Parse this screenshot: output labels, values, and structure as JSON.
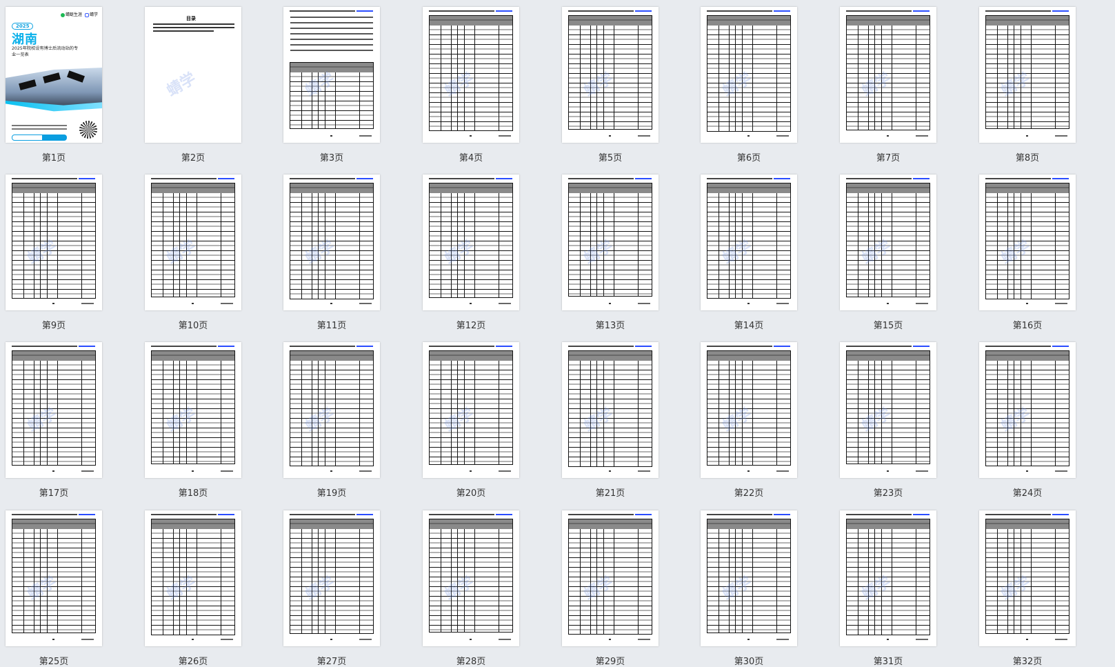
{
  "cover": {
    "brand_left": "蜻蜓生涯",
    "brand_right": "蜻学",
    "year": "2025",
    "province": "湖南",
    "subtitle": "2025年院校设有博士后流动站的专业一览表",
    "watermark": "蜻学"
  },
  "toc": {
    "title": "目录"
  },
  "pages": [
    {
      "label": "第1页"
    },
    {
      "label": "第2页"
    },
    {
      "label": "第3页"
    },
    {
      "label": "第4页"
    },
    {
      "label": "第5页"
    },
    {
      "label": "第6页"
    },
    {
      "label": "第7页"
    },
    {
      "label": "第8页"
    },
    {
      "label": "第9页"
    },
    {
      "label": "第10页"
    },
    {
      "label": "第11页"
    },
    {
      "label": "第12页"
    },
    {
      "label": "第13页"
    },
    {
      "label": "第14页"
    },
    {
      "label": "第15页"
    },
    {
      "label": "第16页"
    },
    {
      "label": "第17页"
    },
    {
      "label": "第18页"
    },
    {
      "label": "第19页"
    },
    {
      "label": "第20页"
    },
    {
      "label": "第21页"
    },
    {
      "label": "第22页"
    },
    {
      "label": "第23页"
    },
    {
      "label": "第24页"
    },
    {
      "label": "第25页"
    },
    {
      "label": "第26页"
    },
    {
      "label": "第27页"
    },
    {
      "label": "第28页"
    },
    {
      "label": "第29页"
    },
    {
      "label": "第30页"
    },
    {
      "label": "第31页"
    },
    {
      "label": "第32页"
    }
  ],
  "colors": {
    "accent": "#0ab0ea",
    "background": "#e8ebef",
    "link": "#2a4cff"
  }
}
